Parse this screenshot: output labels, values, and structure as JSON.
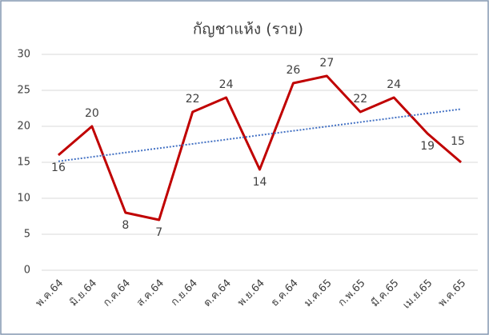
{
  "chart_data": {
    "type": "line",
    "title": "กัญชาแห้ง (ราย)",
    "categories": [
      "พ.ค.64",
      "มิ.ย.64",
      "ก.ค.64",
      "ส.ค.64",
      "ก.ย.64",
      "ต.ค.64",
      "พ.ย.64",
      "ธ.ค.64",
      "ม.ค.65",
      "ก.พ.65",
      "มี.ค.65",
      "เม.ย.65",
      "พ.ค.65"
    ],
    "values": [
      16,
      20,
      8,
      7,
      22,
      24,
      14,
      26,
      27,
      22,
      24,
      19,
      15
    ],
    "color": "#c00000",
    "trendline": true,
    "trendline_color": "#4472c4",
    "ylim": [
      0,
      30
    ],
    "yticks": [
      0,
      5,
      10,
      15,
      20,
      25,
      30
    ],
    "grid": true
  }
}
